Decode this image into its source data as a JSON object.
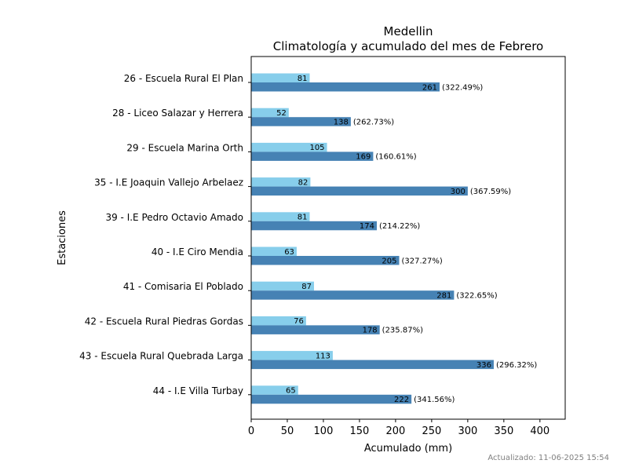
{
  "chart_data": {
    "type": "bar",
    "orientation": "horizontal",
    "title": "Medellin",
    "subtitle": "Climatología y acumulado del mes de Febrero",
    "xlabel": "Acumulado (mm)",
    "ylabel": "Estaciones",
    "xlim": [
      0,
      435
    ],
    "xticks": [
      "0",
      "50",
      "100",
      "150",
      "200",
      "250",
      "300",
      "350",
      "400"
    ],
    "grid": false,
    "categories": [
      "26 - Escuela Rural El Plan",
      "28 - Liceo Salazar y Herrera",
      "29 - Escuela Marina Orth",
      "35 - I.E Joaquin Vallejo Arbelaez ",
      "39 - I.E Pedro Octavio Amado",
      "40 - I.E Ciro Mendia",
      "41 - Comisaria El Poblado",
      "42 - Escuela Rural Piedras Gordas",
      "43 - Escuela Rural Quebrada Larga",
      "44 - I.E Villa Turbay"
    ],
    "series": [
      {
        "color": "#87ceeb",
        "values": [
          81,
          52,
          105,
          82,
          81,
          63,
          87,
          76,
          113,
          65
        ]
      },
      {
        "color": "#4682b4",
        "values": [
          261,
          138,
          169,
          300,
          174,
          205,
          281,
          178,
          336,
          222
        ]
      }
    ],
    "percent_labels": [
      "(322.49%)",
      "(262.73%)",
      "(160.61%)",
      "(367.59%)",
      "(214.22%)",
      "(327.27%)",
      "(322.65%)",
      "(235.87%)",
      "(296.32%)",
      "(341.56%)"
    ]
  },
  "footer": {
    "updated": "Actualizado: 11-06-2025 15:54"
  }
}
